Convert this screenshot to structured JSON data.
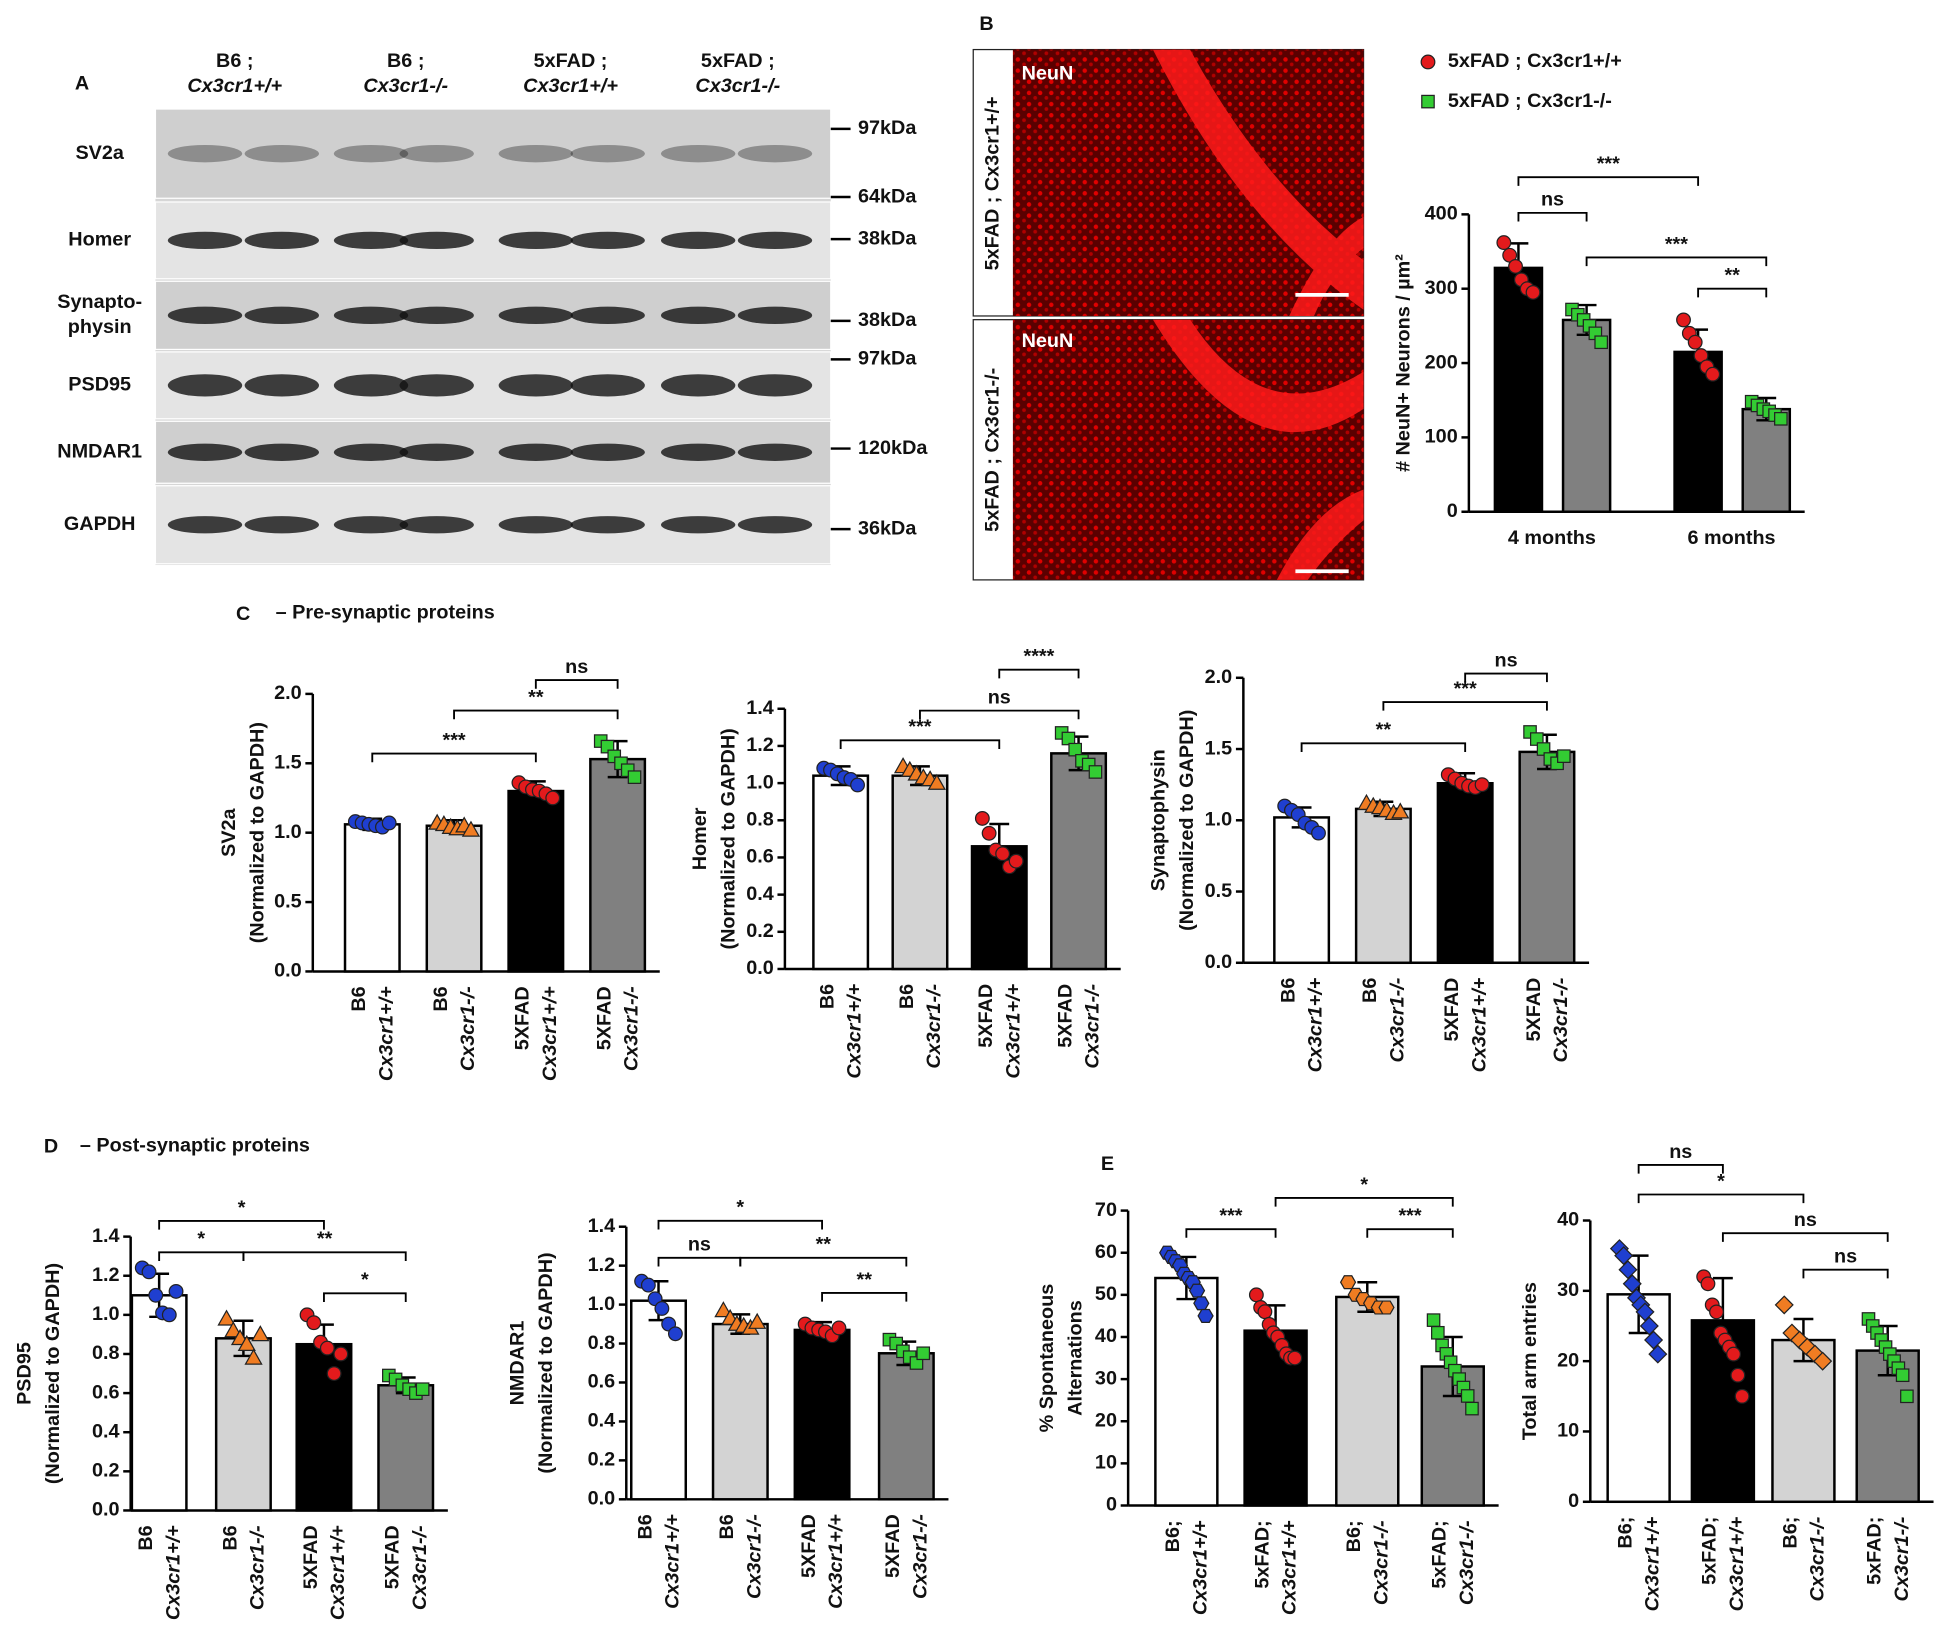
{
  "panel_labels": [
    "A",
    "B",
    "C",
    "D",
    "E"
  ],
  "section_titles": [
    "– Pre-synaptic proteins",
    "– Post-synaptic proteins"
  ],
  "blot": {
    "groups": [
      [
        "B6 ;",
        "Cx3cr1+/+"
      ],
      [
        "B6 ;",
        "Cx3cr1-/-"
      ],
      [
        "5xFAD ;",
        "Cx3cr1+/+"
      ],
      [
        "5xFAD ;",
        "Cx3cr1-/-"
      ]
    ],
    "proteins": [
      [
        "SV2a"
      ],
      [
        "Homer"
      ],
      [
        "Synapto-",
        "physin"
      ],
      [
        "PSD95"
      ],
      [
        "NMDAR1"
      ],
      [
        "GAPDH"
      ]
    ],
    "markers": [
      "97kDa",
      "64kDa",
      "38kDa",
      "38kDa",
      "97kDa",
      "120kDa",
      "36kDa"
    ]
  },
  "micrograph": {
    "stain": [
      "NeuN",
      "NeuN"
    ],
    "genotypes": [
      "5xFAD ; Cx3cr1+/+",
      "5xFAD ; Cx3cr1-/-"
    ]
  },
  "chart_data": [
    {
      "type": "bar",
      "ylabel": [
        "# NeuN+ Neurons / µm²"
      ],
      "categories": [
        [
          "4 months"
        ],
        [
          "6 months"
        ]
      ],
      "series": [
        {
          "name": "5xFAD ; Cx3cr1+/+",
          "color": "#000000",
          "point_color": "#e31a1c",
          "marker": "circle",
          "values": [
            328,
            215
          ],
          "errors": [
            33,
            30
          ],
          "points": [
            [
              362,
              345,
              330,
              312,
              300,
              295
            ],
            [
              258,
              240,
              228,
              210,
              195,
              185
            ]
          ]
        },
        {
          "name": "5xFAD ; Cx3cr1-/-",
          "color": "#808080",
          "point_color": "#33cc33",
          "marker": "square",
          "values": [
            258,
            138
          ],
          "errors": [
            20,
            15
          ],
          "points": [
            [
              272,
              265,
              258,
              250,
              240,
              228
            ],
            [
              148,
              143,
              138,
              135,
              130,
              125
            ]
          ]
        }
      ],
      "ylim": [
        0,
        400
      ],
      "yticks": [
        0,
        100,
        200,
        300,
        400
      ],
      "annotations": [
        {
          "text": "ns",
          "span": [
            0,
            1
          ],
          "y": 402
        },
        {
          "text": "***",
          "span": [
            0,
            2
          ],
          "y": 450
        },
        {
          "text": "***",
          "span": [
            1,
            3
          ],
          "y": 342
        },
        {
          "text": "**",
          "span": [
            2,
            3
          ],
          "y": 300
        }
      ]
    },
    {
      "type": "bar",
      "ylabel": [
        "SV2a",
        "(Normalized to GAPDH)"
      ],
      "categories": [
        [
          "B6",
          "Cx3cr1+/+"
        ],
        [
          "B6",
          "Cx3cr1-/-"
        ],
        [
          "5XFAD",
          "Cx3cr1+/+"
        ],
        [
          "5XFAD",
          "Cx3cr1-/-"
        ]
      ],
      "values": [
        1.06,
        1.05,
        1.3,
        1.53
      ],
      "errors": [
        0.04,
        0.04,
        0.07,
        0.13
      ],
      "colors": [
        "#ffffff",
        "#d3d3d3",
        "#000000",
        "#808080"
      ],
      "point_colors": [
        "#1f3fd0",
        "#f07c22",
        "#e31a1c",
        "#33cc33"
      ],
      "markers": [
        "circle",
        "triangle",
        "circle",
        "square"
      ],
      "points": [
        [
          1.08,
          1.07,
          1.06,
          1.05,
          1.04,
          1.07
        ],
        [
          1.07,
          1.06,
          1.04,
          1.03,
          1.05,
          1.02
        ],
        [
          1.36,
          1.33,
          1.31,
          1.3,
          1.28,
          1.25
        ],
        [
          1.66,
          1.62,
          1.55,
          1.5,
          1.45,
          1.4
        ]
      ],
      "ylim": [
        0,
        2
      ],
      "yticks": [
        {
          "value": 0,
          "label": "0.0"
        },
        0.5,
        {
          "value": 1,
          "label": "1.0"
        },
        1.5,
        {
          "value": 2,
          "label": "2.0"
        }
      ],
      "annotations": [
        {
          "text": "***",
          "span": [
            0,
            2
          ],
          "y": 1.57
        },
        {
          "text": "**",
          "span": [
            1,
            3
          ],
          "y": 1.88
        },
        {
          "text": "ns",
          "span": [
            2,
            3
          ],
          "y": 2.1
        }
      ]
    },
    {
      "type": "bar",
      "ylabel": [
        "Homer",
        "(Normalized to GAPDH)"
      ],
      "categories": [
        [
          "B6",
          "Cx3cr1+/+"
        ],
        [
          "B6",
          "Cx3cr1-/-"
        ],
        [
          "5XFAD",
          "Cx3cr1+/+"
        ],
        [
          "5XFAD",
          "Cx3cr1-/-"
        ]
      ],
      "values": [
        1.04,
        1.04,
        0.66,
        1.16
      ],
      "errors": [
        0.05,
        0.05,
        0.12,
        0.09
      ],
      "colors": [
        "#ffffff",
        "#d3d3d3",
        "#000000",
        "#808080"
      ],
      "point_colors": [
        "#1f3fd0",
        "#f07c22",
        "#e31a1c",
        "#33cc33"
      ],
      "markers": [
        "circle",
        "triangle",
        "circle",
        "square"
      ],
      "points": [
        [
          1.08,
          1.07,
          1.05,
          1.03,
          1.02,
          0.99
        ],
        [
          1.09,
          1.07,
          1.05,
          1.03,
          1.02,
          1.0
        ],
        [
          0.81,
          0.73,
          0.64,
          0.62,
          0.55,
          0.58
        ],
        [
          1.27,
          1.24,
          1.18,
          1.12,
          1.1,
          1.06
        ]
      ],
      "ylim": [
        0,
        1.4
      ],
      "yticks": [
        {
          "value": 0,
          "label": "0.0"
        },
        0.2,
        0.4,
        0.6,
        0.8,
        {
          "value": 1,
          "label": "1.0"
        },
        1.2,
        1.4
      ],
      "annotations": [
        {
          "text": "***",
          "span": [
            0,
            2
          ],
          "y": 1.23
        },
        {
          "text": "ns",
          "span": [
            1,
            3
          ],
          "y": 1.39
        },
        {
          "text": "****",
          "span": [
            2,
            3
          ],
          "y": 1.61
        }
      ]
    },
    {
      "type": "bar",
      "ylabel": [
        "Synaptophysin",
        "(Normalized to GAPDH)"
      ],
      "categories": [
        [
          "B6",
          "Cx3cr1+/+"
        ],
        [
          "B6",
          "Cx3cr1-/-"
        ],
        [
          "5XFAD",
          "Cx3cr1+/+"
        ],
        [
          "5XFAD",
          "Cx3cr1-/-"
        ]
      ],
      "values": [
        1.02,
        1.08,
        1.26,
        1.48
      ],
      "errors": [
        0.07,
        0.05,
        0.07,
        0.12
      ],
      "colors": [
        "#ffffff",
        "#d3d3d3",
        "#000000",
        "#808080"
      ],
      "point_colors": [
        "#1f3fd0",
        "#f07c22",
        "#e31a1c",
        "#33cc33"
      ],
      "markers": [
        "circle",
        "triangle",
        "circle",
        "square"
      ],
      "points": [
        [
          1.1,
          1.07,
          1.04,
          0.98,
          0.95,
          0.91
        ],
        [
          1.12,
          1.1,
          1.09,
          1.07,
          1.05,
          1.06
        ],
        [
          1.32,
          1.29,
          1.26,
          1.24,
          1.23,
          1.25
        ],
        [
          1.62,
          1.57,
          1.5,
          1.43,
          1.4,
          1.45
        ]
      ],
      "ylim": [
        0,
        2
      ],
      "yticks": [
        {
          "value": 0,
          "label": "0.0"
        },
        0.5,
        {
          "value": 1,
          "label": "1.0"
        },
        1.5,
        {
          "value": 2,
          "label": "2.0"
        }
      ],
      "annotations": [
        {
          "text": "**",
          "span": [
            0,
            2
          ],
          "y": 1.54
        },
        {
          "text": "***",
          "span": [
            1,
            3
          ],
          "y": 1.83
        },
        {
          "text": "ns",
          "span": [
            2,
            3
          ],
          "y": 2.03
        }
      ]
    },
    {
      "type": "bar",
      "ylabel": [
        "PSD95",
        "(Normalized to GAPDH)"
      ],
      "categories": [
        [
          "B6",
          "Cx3cr1+/+"
        ],
        [
          "B6",
          "Cx3cr1-/-"
        ],
        [
          "5XFAD",
          "Cx3cr1+/+"
        ],
        [
          "5XFAD",
          "Cx3cr1-/-"
        ]
      ],
      "values": [
        1.1,
        0.88,
        0.85,
        0.64
      ],
      "errors": [
        0.11,
        0.09,
        0.1,
        0.04
      ],
      "colors": [
        "#ffffff",
        "#d3d3d3",
        "#000000",
        "#808080"
      ],
      "point_colors": [
        "#1f3fd0",
        "#f07c22",
        "#e31a1c",
        "#33cc33"
      ],
      "markers": [
        "circle",
        "triangle",
        "circle",
        "square"
      ],
      "points": [
        [
          1.24,
          1.22,
          1.1,
          1.01,
          1.0,
          1.12
        ],
        [
          0.98,
          0.92,
          0.88,
          0.85,
          0.78,
          0.9
        ],
        [
          1.0,
          0.96,
          0.86,
          0.83,
          0.7,
          0.8
        ],
        [
          0.69,
          0.67,
          0.64,
          0.62,
          0.6,
          0.62
        ]
      ],
      "ylim": [
        0,
        1.4
      ],
      "yticks": [
        {
          "value": 0,
          "label": "0.0"
        },
        0.2,
        0.4,
        0.6,
        0.8,
        {
          "value": 1,
          "label": "1.0"
        },
        1.2,
        1.4
      ],
      "annotations": [
        {
          "text": "*",
          "span": [
            0,
            2
          ],
          "y": 1.48
        },
        {
          "text": "*",
          "span": [
            0,
            1
          ],
          "y": 1.32
        },
        {
          "text": "**",
          "span": [
            1,
            3
          ],
          "y": 1.32
        },
        {
          "text": "*",
          "span": [
            2,
            3
          ],
          "y": 1.11
        }
      ]
    },
    {
      "type": "bar",
      "ylabel": [
        "NMDAR1",
        "(Normalized to GAPDH)"
      ],
      "categories": [
        [
          "B6",
          "Cx3cr1+/+"
        ],
        [
          "B6",
          "Cx3cr1-/-"
        ],
        [
          "5XFAD",
          "Cx3cr1+/+"
        ],
        [
          "5XFAD",
          "Cx3cr1-/-"
        ]
      ],
      "values": [
        1.02,
        0.9,
        0.87,
        0.75
      ],
      "errors": [
        0.1,
        0.05,
        0.04,
        0.06
      ],
      "colors": [
        "#ffffff",
        "#d3d3d3",
        "#000000",
        "#808080"
      ],
      "point_colors": [
        "#1f3fd0",
        "#f07c22",
        "#e31a1c",
        "#33cc33"
      ],
      "markers": [
        "circle",
        "triangle",
        "circle",
        "square"
      ],
      "points": [
        [
          1.12,
          1.1,
          1.03,
          0.98,
          0.9,
          0.85
        ],
        [
          0.97,
          0.93,
          0.9,
          0.89,
          0.88,
          0.91
        ],
        [
          0.9,
          0.88,
          0.87,
          0.86,
          0.84,
          0.88
        ],
        [
          0.82,
          0.8,
          0.76,
          0.73,
          0.7,
          0.75
        ]
      ],
      "ylim": [
        0,
        1.4
      ],
      "yticks": [
        {
          "value": 0,
          "label": "0.0"
        },
        0.2,
        0.4,
        0.6,
        0.8,
        {
          "value": 1,
          "label": "1.0"
        },
        1.2,
        1.4
      ],
      "annotations": [
        {
          "text": "*",
          "span": [
            0,
            2
          ],
          "y": 1.43
        },
        {
          "text": "ns",
          "span": [
            0,
            1
          ],
          "y": 1.24
        },
        {
          "text": "**",
          "span": [
            1,
            3
          ],
          "y": 1.24
        },
        {
          "text": "**",
          "span": [
            2,
            3
          ],
          "y": 1.06
        }
      ]
    },
    {
      "type": "bar",
      "ylabel": [
        "% Spontaneous",
        "Alternations"
      ],
      "categories": [
        [
          "B6;",
          "Cx3cr1+/+"
        ],
        [
          "5xFAD;",
          "Cx3cr1+/+"
        ],
        [
          "B6;",
          "Cx3cr1-/-"
        ],
        [
          "5xFAD;",
          "Cx3cr1-/-"
        ]
      ],
      "values": [
        54,
        41.5,
        49.5,
        33
      ],
      "errors": [
        5,
        6,
        3.5,
        7
      ],
      "colors": [
        "#ffffff",
        "#000000",
        "#d3d3d3",
        "#808080"
      ],
      "point_colors": [
        "#1f3fd0",
        "#e31a1c",
        "#f07c22",
        "#33cc33"
      ],
      "markers": [
        "hexagon",
        "circle",
        "hexagon",
        "square"
      ],
      "points": [
        [
          60,
          59,
          58,
          57,
          55,
          54,
          53,
          51,
          48,
          45
        ],
        [
          50,
          47,
          46,
          43,
          41,
          40,
          38,
          36,
          35,
          35
        ],
        [
          53,
          50,
          49,
          48,
          47,
          47
        ],
        [
          44,
          41,
          38,
          36,
          34,
          32,
          30,
          28,
          26,
          23
        ]
      ],
      "ylim": [
        0,
        70
      ],
      "yticks": [
        0,
        10,
        20,
        30,
        40,
        50,
        60,
        70
      ],
      "annotations": [
        {
          "text": "***",
          "span": [
            0,
            1
          ],
          "y": 65.6
        },
        {
          "text": "*",
          "span": [
            1,
            3
          ],
          "y": 73
        },
        {
          "text": "***",
          "span": [
            2,
            3
          ],
          "y": 65.6
        }
      ]
    },
    {
      "type": "bar",
      "ylabel": [
        "Total arm entries"
      ],
      "categories": [
        [
          "B6;",
          "Cx3cr1+/+"
        ],
        [
          "5xFAD;",
          "Cx3cr1+/+"
        ],
        [
          "B6;",
          "Cx3cr1-/-"
        ],
        [
          "5xFAD;",
          "Cx3cr1-/-"
        ]
      ],
      "values": [
        29.5,
        25.8,
        23,
        21.5
      ],
      "errors": [
        5.5,
        6,
        3,
        3.5
      ],
      "colors": [
        "#ffffff",
        "#000000",
        "#d3d3d3",
        "#808080"
      ],
      "point_colors": [
        "#1f3fd0",
        "#e31a1c",
        "#f07c22",
        "#33cc33"
      ],
      "markers": [
        "diamond",
        "circle",
        "diamond",
        "square"
      ],
      "points": [
        [
          36,
          35,
          33,
          31,
          29,
          28,
          27,
          25,
          23,
          21
        ],
        [
          32,
          31,
          28,
          27,
          24,
          23,
          22,
          21,
          18,
          15
        ],
        [
          28,
          24,
          23,
          22,
          21,
          20
        ],
        [
          26,
          25,
          24,
          23,
          22,
          21,
          20,
          19,
          18,
          15
        ]
      ],
      "ylim": [
        0,
        40
      ],
      "yticks": [
        0,
        10,
        20,
        30,
        40
      ],
      "annotations": [
        {
          "text": "ns",
          "span": [
            0,
            1
          ],
          "y": 47.9
        },
        {
          "text": "*",
          "span": [
            0,
            2
          ],
          "y": 43.7
        },
        {
          "text": "ns",
          "span": [
            1,
            3
          ],
          "y": 38.2
        },
        {
          "text": "ns",
          "span": [
            2,
            3
          ],
          "y": 33
        }
      ]
    }
  ]
}
